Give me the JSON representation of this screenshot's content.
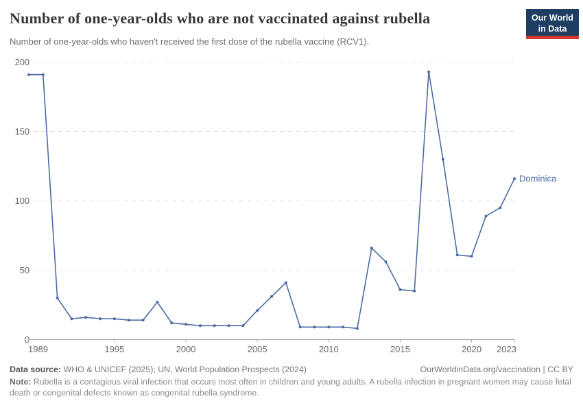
{
  "header": {
    "title": "Number of one-year-olds who are not vaccinated against rubella",
    "subtitle": "Number of one-year-olds who haven't received the first dose of the rubella vaccine (RCV1).",
    "logo": {
      "line1": "Our World",
      "line2": "in Data",
      "bg_color": "#1d3d63",
      "stripe_color": "#d7382e"
    }
  },
  "chart_data": {
    "type": "line",
    "title": "Number of one-year-olds who are not vaccinated against rubella",
    "entity_label": "Dominica",
    "line_color": "#4c6ba3",
    "x": [
      1989,
      1990,
      1991,
      1992,
      1993,
      1994,
      1995,
      1996,
      1997,
      1998,
      1999,
      2000,
      2001,
      2002,
      2003,
      2004,
      2005,
      2006,
      2007,
      2008,
      2009,
      2010,
      2011,
      2012,
      2013,
      2014,
      2015,
      2016,
      2017,
      2018,
      2019,
      2020,
      2021,
      2022,
      2023
    ],
    "series": [
      {
        "name": "Dominica",
        "values": [
          191,
          191,
          30,
          15,
          16,
          15,
          15,
          14,
          14,
          27,
          12,
          11,
          10,
          10,
          10,
          10,
          21,
          31,
          41,
          9,
          9,
          9,
          9,
          8,
          66,
          56,
          36,
          35,
          193,
          130,
          61,
          60,
          89,
          95,
          116
        ]
      }
    ],
    "xlim": [
      1989,
      2023
    ],
    "ylim": [
      0,
      200
    ],
    "yticks": [
      0,
      50,
      100,
      150,
      200
    ],
    "xticks": [
      1989,
      1995,
      2000,
      2005,
      2010,
      2015,
      2020,
      2023
    ],
    "grid": "horizontal-dashed",
    "legend_position": "end-of-line-label",
    "axis_color": "#a8a8a8",
    "grid_color": "#e2e2e2",
    "tick_label_color": "#666666"
  },
  "footer": {
    "datasource_label": "Data source:",
    "datasource_text": " WHO & UNICEF (2025); UN, World Population Prospects (2024)",
    "link_text": "OurWorldinData.org/vaccination | CC BY",
    "note_label": "Note:",
    "note_text": " Rubella is a contagious viral infection that occurs most often in children and young adults. A rubella infection in pregnant women may cause fetal death or congenital defects known as congenital rubella syndrome."
  }
}
